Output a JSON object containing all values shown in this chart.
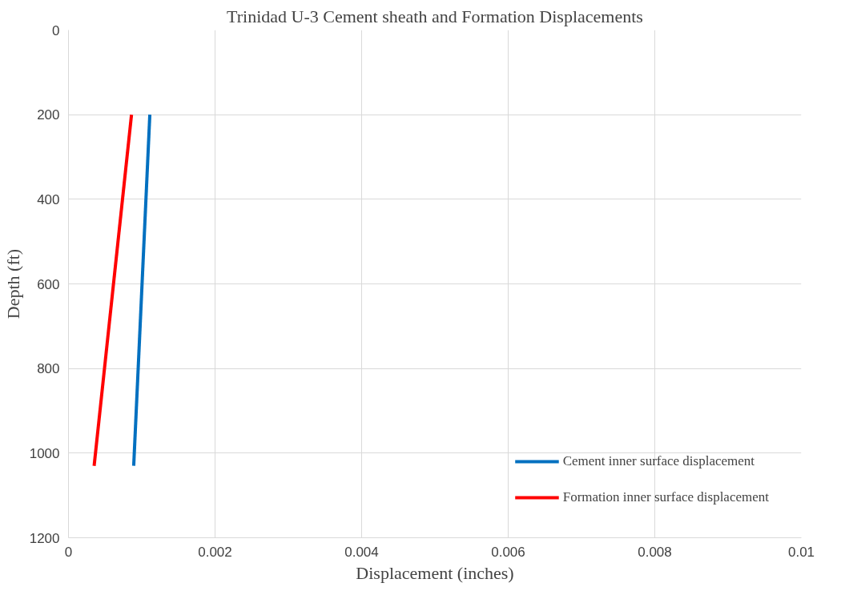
{
  "chart_data": {
    "type": "line",
    "title": "Trinidad U-3 Cement sheath and Formation Displacements",
    "xlabel": "Displacement (inches)",
    "ylabel": "Depth (ft)",
    "series": [
      {
        "name": "Cement inner surface displacement",
        "color": "#0070c0",
        "x": [
          0.00111,
          0.00089
        ],
        "values": [
          200,
          1030
        ]
      },
      {
        "name": "Formation inner surface displacement",
        "color": "#ff0000",
        "x": [
          0.00086,
          0.00035
        ],
        "values": [
          200,
          1030
        ]
      }
    ],
    "xlim": [
      0,
      0.01
    ],
    "xticks": [
      0,
      0.002,
      0.004,
      0.006,
      0.008,
      0.01
    ],
    "ylim": [
      1200,
      0
    ],
    "yticks": [
      0,
      200,
      400,
      600,
      800,
      1000,
      1200
    ],
    "grid": true,
    "legend": "bottom right",
    "marker": "none",
    "line_style": "solid"
  }
}
